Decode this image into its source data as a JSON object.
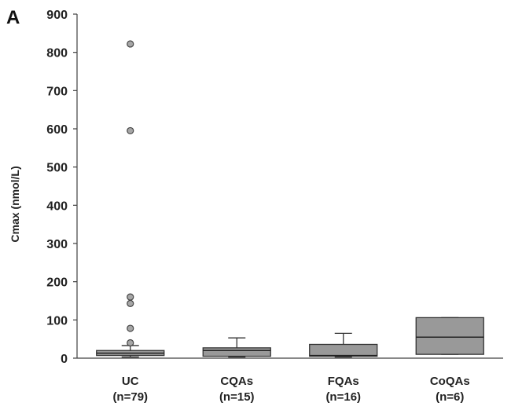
{
  "chart_data": {
    "type": "box",
    "panel_label": "A",
    "ylabel": "Cmax (nmol/L)",
    "xlabel": "",
    "ylim": [
      0,
      900
    ],
    "yticks": [
      0,
      100,
      200,
      300,
      400,
      500,
      600,
      700,
      800,
      900
    ],
    "grid": false,
    "box_fill": "#999999",
    "outlier_fill": "#a6a6a6",
    "categories": [
      {
        "name": "UC",
        "n_label": "(n=79)",
        "min": 3,
        "q1": 7,
        "median": 13,
        "q3": 20,
        "max": 33,
        "outliers": [
          40,
          78,
          143,
          160,
          595,
          822
        ]
      },
      {
        "name": "CQAs",
        "n_label": "(n=15)",
        "min": 3,
        "q1": 5,
        "median": 20,
        "q3": 27,
        "max": 53,
        "outliers": []
      },
      {
        "name": "FQAs",
        "n_label": "(n=16)",
        "min": 3,
        "q1": 5,
        "median": 7,
        "q3": 36,
        "max": 65,
        "outliers": []
      },
      {
        "name": "CoQAs",
        "n_label": "(n=6)",
        "min": 10,
        "q1": 10,
        "median": 55,
        "q3": 106,
        "max": 106,
        "outliers": []
      }
    ]
  }
}
